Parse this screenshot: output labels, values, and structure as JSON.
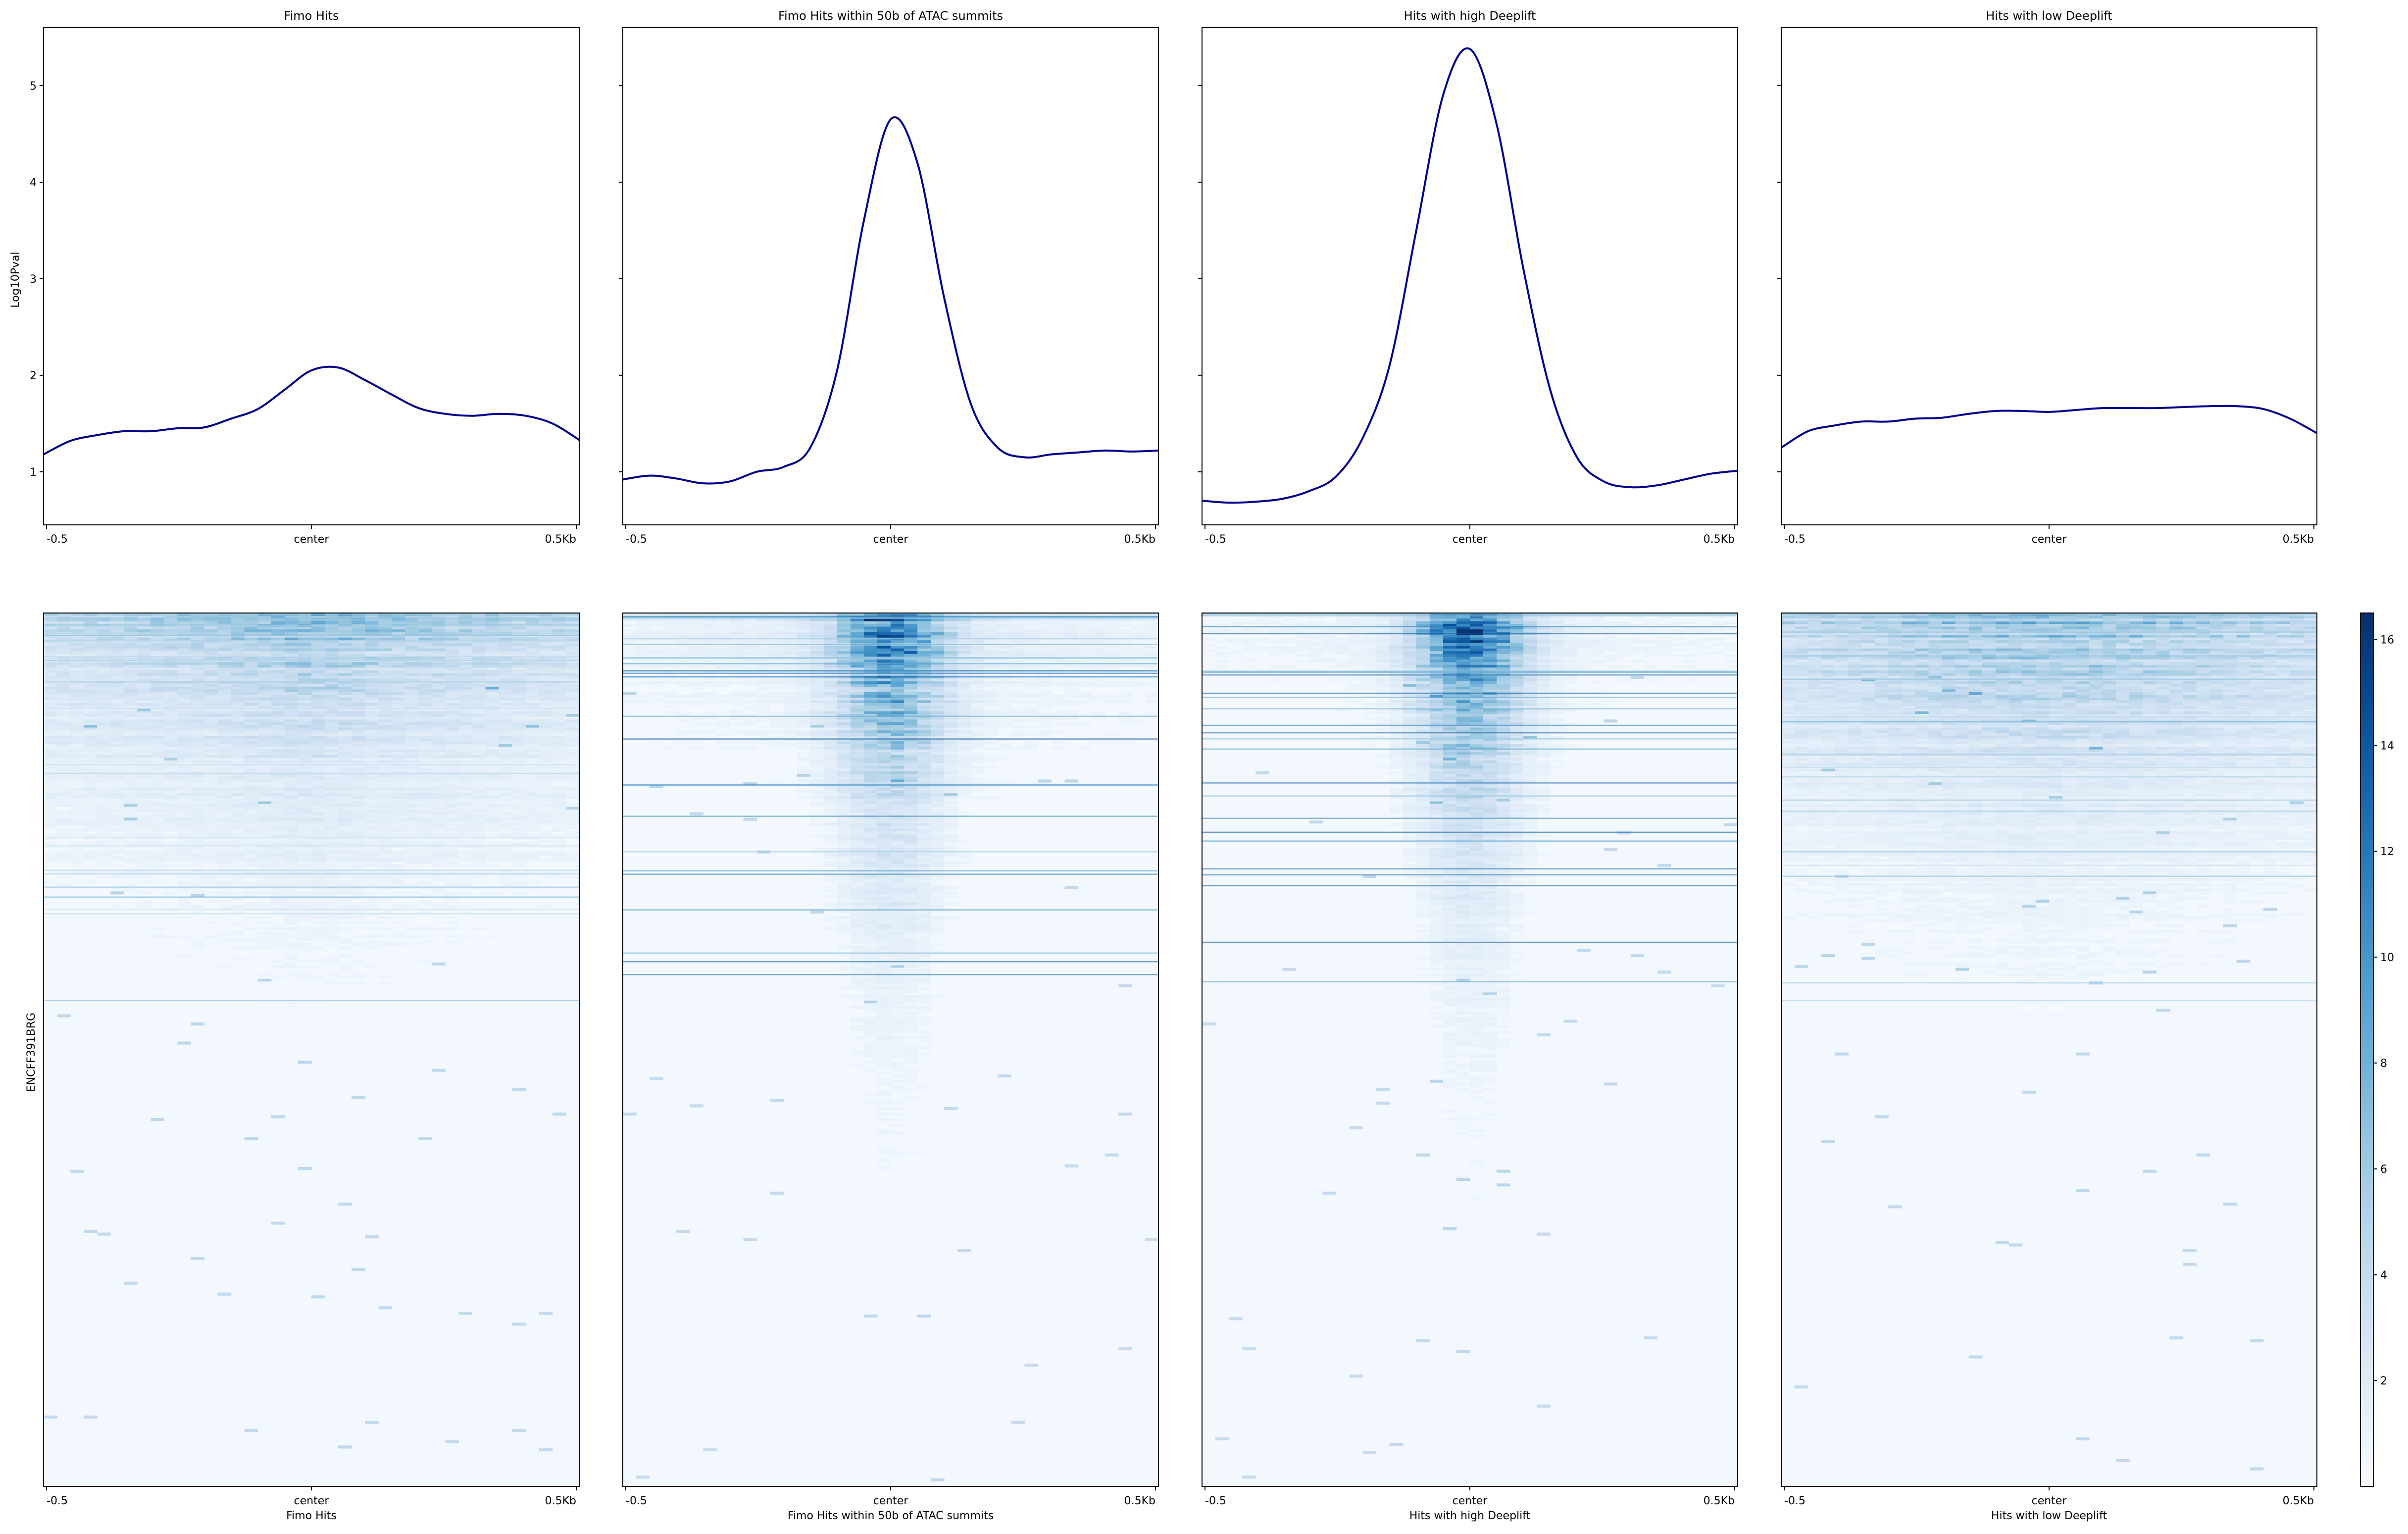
{
  "figure": {
    "ylabel_profile": "Log10Pval",
    "ylabel_heatmap": "ENCFF391BRG"
  },
  "chart_data": [
    {
      "type": "line",
      "title": "Fimo Hits",
      "x": [
        -0.5,
        -0.45,
        -0.4,
        -0.35,
        -0.3,
        -0.25,
        -0.2,
        -0.15,
        -0.1,
        -0.05,
        0.0,
        0.05,
        0.1,
        0.15,
        0.2,
        0.25,
        0.3,
        0.35,
        0.4,
        0.45,
        0.5
      ],
      "values": [
        1.18,
        1.32,
        1.38,
        1.42,
        1.42,
        1.45,
        1.46,
        1.55,
        1.65,
        1.85,
        2.05,
        2.08,
        1.95,
        1.8,
        1.66,
        1.6,
        1.58,
        1.6,
        1.58,
        1.5,
        1.33
      ],
      "xticks": [
        "-0.5",
        "center",
        "0.5Kb"
      ],
      "yticks": [
        "1",
        "2",
        "3",
        "4",
        "5"
      ],
      "ylim": [
        0.45,
        5.6
      ],
      "line_color": "#00008b"
    },
    {
      "type": "line",
      "title": "Fimo Hits within 50b of ATAC summits",
      "x": [
        -0.5,
        -0.45,
        -0.4,
        -0.35,
        -0.3,
        -0.25,
        -0.2,
        -0.15,
        -0.1,
        -0.05,
        0.0,
        0.05,
        0.1,
        0.15,
        0.2,
        0.25,
        0.3,
        0.35,
        0.4,
        0.45,
        0.5
      ],
      "values": [
        0.92,
        0.96,
        0.93,
        0.88,
        0.9,
        1.0,
        1.05,
        1.25,
        2.05,
        3.6,
        4.65,
        4.2,
        2.8,
        1.7,
        1.25,
        1.15,
        1.18,
        1.2,
        1.22,
        1.21,
        1.22
      ],
      "xticks": [
        "-0.5",
        "center",
        "0.5Kb"
      ],
      "yticks": [
        "1",
        "2",
        "3",
        "4",
        "5"
      ],
      "ylim": [
        0.45,
        5.6
      ],
      "line_color": "#00008b"
    },
    {
      "type": "line",
      "title": "Hits with high Deeplift",
      "x": [
        -0.5,
        -0.45,
        -0.4,
        -0.35,
        -0.3,
        -0.25,
        -0.2,
        -0.15,
        -0.1,
        -0.05,
        0.0,
        0.05,
        0.1,
        0.15,
        0.2,
        0.25,
        0.3,
        0.35,
        0.4,
        0.45,
        0.5
      ],
      "values": [
        0.7,
        0.68,
        0.69,
        0.72,
        0.8,
        0.95,
        1.35,
        2.1,
        3.5,
        4.9,
        5.38,
        4.6,
        3.1,
        1.85,
        1.15,
        0.9,
        0.84,
        0.86,
        0.92,
        0.98,
        1.01
      ],
      "xticks": [
        "-0.5",
        "center",
        "0.5Kb"
      ],
      "yticks": [
        "1",
        "2",
        "3",
        "4",
        "5"
      ],
      "ylim": [
        0.45,
        5.6
      ],
      "line_color": "#00008b"
    },
    {
      "type": "line",
      "title": "Hits with low Deeplift",
      "x": [
        -0.5,
        -0.45,
        -0.4,
        -0.35,
        -0.3,
        -0.25,
        -0.2,
        -0.15,
        -0.1,
        -0.05,
        0.0,
        0.05,
        0.1,
        0.15,
        0.2,
        0.25,
        0.3,
        0.35,
        0.4,
        0.45,
        0.5
      ],
      "values": [
        1.25,
        1.42,
        1.48,
        1.52,
        1.52,
        1.55,
        1.56,
        1.6,
        1.63,
        1.63,
        1.62,
        1.64,
        1.66,
        1.66,
        1.66,
        1.67,
        1.68,
        1.68,
        1.65,
        1.55,
        1.4
      ],
      "xticks": [
        "-0.5",
        "center",
        "0.5Kb"
      ],
      "yticks": [
        "1",
        "2",
        "3",
        "4",
        "5"
      ],
      "ylim": [
        0.45,
        5.6
      ],
      "line_color": "#00008b"
    },
    {
      "type": "heatmap",
      "xlabel": "Fimo Hits",
      "xticks": [
        "-0.5",
        "center",
        "0.5Kb"
      ],
      "colormap": "Blues",
      "peak_intensity": 0.55,
      "center_focus": 0.15
    },
    {
      "type": "heatmap",
      "xlabel": "Fimo Hits within 50b of ATAC summits",
      "xticks": [
        "-0.5",
        "center",
        "0.5Kb"
      ],
      "colormap": "Blues",
      "peak_intensity": 1.0,
      "center_focus": 0.85
    },
    {
      "type": "heatmap",
      "xlabel": "Hits with high Deeplift",
      "xticks": [
        "-0.5",
        "center",
        "0.5Kb"
      ],
      "colormap": "Blues",
      "peak_intensity": 1.0,
      "center_focus": 0.9
    },
    {
      "type": "heatmap",
      "xlabel": "Hits with low Deeplift",
      "xticks": [
        "-0.5",
        "center",
        "0.5Kb"
      ],
      "colormap": "Blues",
      "peak_intensity": 0.55,
      "center_focus": 0.05
    },
    {
      "type": "colorbar",
      "colormap": "Blues",
      "range": [
        0,
        16.5
      ],
      "ticks": [
        "2",
        "4",
        "6",
        "8",
        "10",
        "12",
        "14",
        "16"
      ]
    }
  ]
}
